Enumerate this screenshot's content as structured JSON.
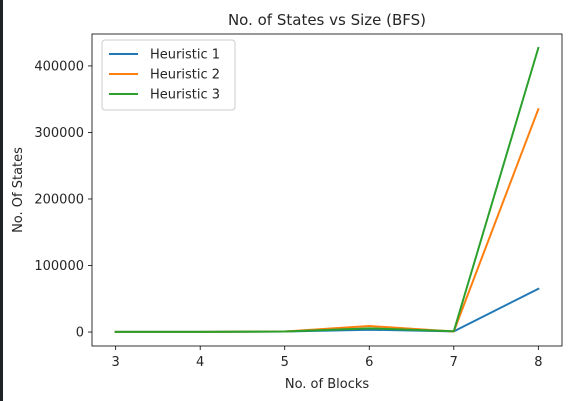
{
  "chart_data": {
    "type": "line",
    "title": "No. of States vs Size (BFS)",
    "xlabel": "No. of Blocks",
    "ylabel": "No. Of States",
    "x": [
      3,
      4,
      5,
      6,
      7,
      8
    ],
    "xlim": [
      2.72,
      8.28
    ],
    "ylim": [
      -21000,
      448000
    ],
    "xticks": [
      "3",
      "4",
      "5",
      "6",
      "7",
      "8"
    ],
    "yticks": [
      "0",
      "100000",
      "200000",
      "300000",
      "400000"
    ],
    "ytick_values": [
      0,
      100000,
      200000,
      300000,
      400000
    ],
    "legend_position": "top-left",
    "grid": false,
    "series": [
      {
        "name": "Heuristic 1",
        "color": "#1f77b4",
        "values": [
          150,
          300,
          800,
          3500,
          1000,
          65000
        ]
      },
      {
        "name": "Heuristic 2",
        "color": "#ff7f0e",
        "values": [
          150,
          300,
          800,
          9000,
          800,
          335000
        ]
      },
      {
        "name": "Heuristic 3",
        "color": "#2ca02c",
        "values": [
          150,
          300,
          800,
          5500,
          1200,
          427000
        ]
      }
    ]
  }
}
